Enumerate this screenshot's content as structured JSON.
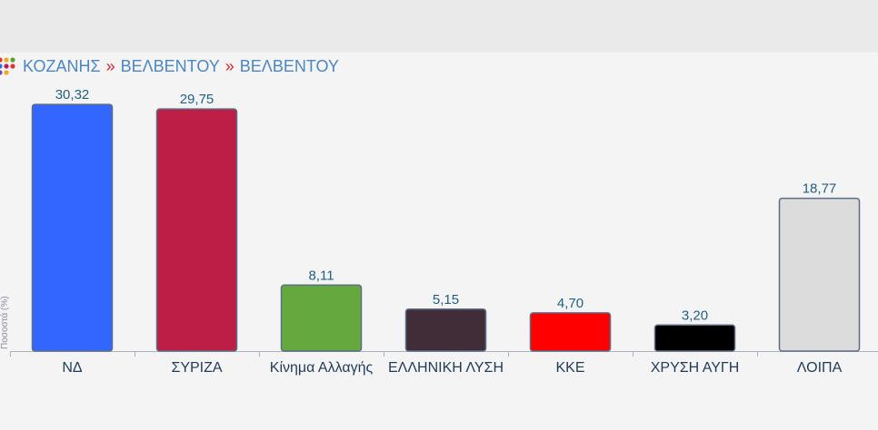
{
  "breadcrumb": {
    "items": [
      "ΚΟΖΑΝΗΣ",
      "ΒΕΛΒΕΝΤΟΥ",
      "ΒΕΛΒΕΝΤΟΥ"
    ],
    "separator": "»"
  },
  "chart_data": {
    "type": "bar",
    "ylabel": "Ποσοστά (%)",
    "ylim": [
      0,
      32
    ],
    "grid": false,
    "categories": [
      "ΝΔ",
      "ΣΥΡΙΖΑ",
      "Κίνημα Αλλαγής",
      "ΕΛΛΗΝΙΚΗ ΛΥΣΗ",
      "ΚΚΕ",
      "ΧΡΥΣΗ ΑΥΓΗ",
      "ΛΟΙΠΑ"
    ],
    "values": [
      30.32,
      29.75,
      8.11,
      5.15,
      4.7,
      3.2,
      18.77
    ],
    "value_labels": [
      "30,32",
      "29,75",
      "8,11",
      "5,15",
      "4,70",
      "3,20",
      "18,77"
    ],
    "colors": [
      "#3366ff",
      "#bc1e45",
      "#65a83d",
      "#412d38",
      "#ff0000",
      "#000000",
      "#dcdcdc"
    ]
  }
}
